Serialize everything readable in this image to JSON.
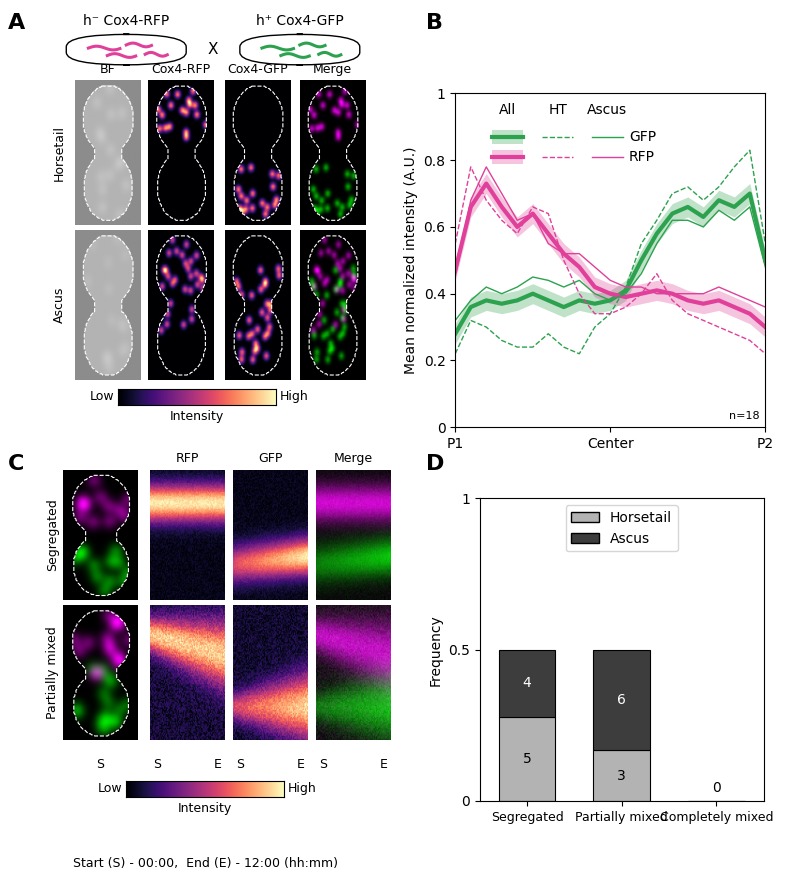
{
  "chart_data": [
    {
      "type": "line",
      "ylabel": "Mean normalized intensity (A.U.)",
      "annotation": "n=18",
      "x": [
        0,
        0.05,
        0.1,
        0.15,
        0.2,
        0.25,
        0.3,
        0.35,
        0.4,
        0.45,
        0.5,
        0.55,
        0.6,
        0.65,
        0.7,
        0.75,
        0.8,
        0.85,
        0.9,
        0.95,
        1
      ],
      "xlim": [
        0,
        1
      ],
      "xticks": [
        {
          "value": 0,
          "label": "P1"
        },
        {
          "value": 0.5,
          "label": "Center"
        },
        {
          "value": 1,
          "label": "P2"
        }
      ],
      "ylim": [
        0,
        1
      ],
      "yticks": [
        0,
        0.2,
        0.4,
        0.6,
        0.8,
        1
      ],
      "series": [
        {
          "name": "GFP",
          "group": "All",
          "color": "#2ca24f",
          "line_style": "solid",
          "values": [
            0.28,
            0.36,
            0.38,
            0.37,
            0.38,
            0.4,
            0.38,
            0.36,
            0.38,
            0.37,
            0.38,
            0.41,
            0.5,
            0.58,
            0.64,
            0.66,
            0.63,
            0.68,
            0.66,
            0.7,
            0.5
          ],
          "error": [
            0.03,
            0.03,
            0.03,
            0.03,
            0.03,
            0.03,
            0.03,
            0.03,
            0.03,
            0.03,
            0.03,
            0.03,
            0.03,
            0.03,
            0.03,
            0.03,
            0.03,
            0.03,
            0.03,
            0.03,
            0.03
          ]
        },
        {
          "name": "RFP",
          "group": "All",
          "color": "#e0409a",
          "line_style": "solid",
          "values": [
            0.47,
            0.66,
            0.73,
            0.66,
            0.6,
            0.64,
            0.58,
            0.52,
            0.48,
            0.42,
            0.4,
            0.39,
            0.4,
            0.41,
            0.4,
            0.38,
            0.37,
            0.38,
            0.36,
            0.34,
            0.3
          ],
          "error": [
            0.03,
            0.03,
            0.03,
            0.03,
            0.03,
            0.03,
            0.03,
            0.03,
            0.03,
            0.03,
            0.03,
            0.03,
            0.03,
            0.03,
            0.03,
            0.03,
            0.03,
            0.03,
            0.03,
            0.03,
            0.03
          ]
        },
        {
          "name": "GFP",
          "group": "HT",
          "color": "#2ca24f",
          "line_style": "dashed",
          "values": [
            0.22,
            0.32,
            0.3,
            0.26,
            0.24,
            0.24,
            0.28,
            0.24,
            0.22,
            0.3,
            0.34,
            0.42,
            0.55,
            0.62,
            0.7,
            0.72,
            0.68,
            0.72,
            0.78,
            0.83,
            0.55
          ]
        },
        {
          "name": "RFP",
          "group": "HT",
          "color": "#e0409a",
          "line_style": "dashed",
          "values": [
            0.55,
            0.78,
            0.68,
            0.62,
            0.58,
            0.66,
            0.64,
            0.5,
            0.4,
            0.34,
            0.34,
            0.36,
            0.4,
            0.46,
            0.38,
            0.34,
            0.32,
            0.3,
            0.28,
            0.26,
            0.22
          ]
        },
        {
          "name": "GFP",
          "group": "Ascus",
          "color": "#2ca24f",
          "line_style": "solid",
          "values": [
            0.32,
            0.38,
            0.42,
            0.4,
            0.42,
            0.45,
            0.44,
            0.42,
            0.44,
            0.4,
            0.38,
            0.4,
            0.46,
            0.55,
            0.62,
            0.62,
            0.6,
            0.65,
            0.62,
            0.66,
            0.48
          ]
        },
        {
          "name": "RFP",
          "group": "Ascus",
          "color": "#e0409a",
          "line_style": "solid",
          "values": [
            0.45,
            0.68,
            0.78,
            0.7,
            0.62,
            0.64,
            0.55,
            0.52,
            0.52,
            0.48,
            0.44,
            0.42,
            0.42,
            0.4,
            0.4,
            0.4,
            0.4,
            0.42,
            0.4,
            0.38,
            0.36
          ]
        }
      ]
    },
    {
      "type": "bar",
      "stacked": true,
      "ylabel": "Frequency",
      "categories": [
        "Segregated",
        "Partially mixed",
        "Completely mixed"
      ],
      "ylim": [
        0,
        1
      ],
      "yticks": [
        0,
        0.5,
        1
      ],
      "legend": "upper center",
      "series": [
        {
          "name": "Horsetail",
          "color": "#b3b3b3",
          "values": [
            0.278,
            0.167,
            0
          ],
          "counts": [
            5,
            3,
            0
          ]
        },
        {
          "name": "Ascus",
          "color": "#3d3d3d",
          "values": [
            0.222,
            0.333,
            0
          ],
          "counts": [
            4,
            6,
            0
          ]
        }
      ]
    }
  ],
  "figure": {
    "panel_labels": [
      "A",
      "B",
      "C",
      "D"
    ],
    "panel_A": {
      "strains": [
        "h⁻ Cox4-RFP",
        "h⁺ Cox4-GFP"
      ],
      "cross": "X",
      "columns": [
        "BF",
        "Cox4-RFP",
        "Cox4-GFP",
        "Merge"
      ],
      "rows": [
        "Horsetail",
        "Ascus"
      ],
      "colorbar": {
        "low": "Low",
        "high": "High",
        "label": "Intensity"
      }
    },
    "panel_C": {
      "rows": [
        "Segregated",
        "Partially mixed"
      ],
      "columns": [
        "RFP",
        "GFP",
        "Merge"
      ],
      "start": "S",
      "end": "E",
      "colorbar": {
        "low": "Low",
        "high": "High",
        "label": "Intensity"
      },
      "caption": "Start (S) - 00:00,  End (E) - 12:00 (hh:mm)"
    }
  }
}
